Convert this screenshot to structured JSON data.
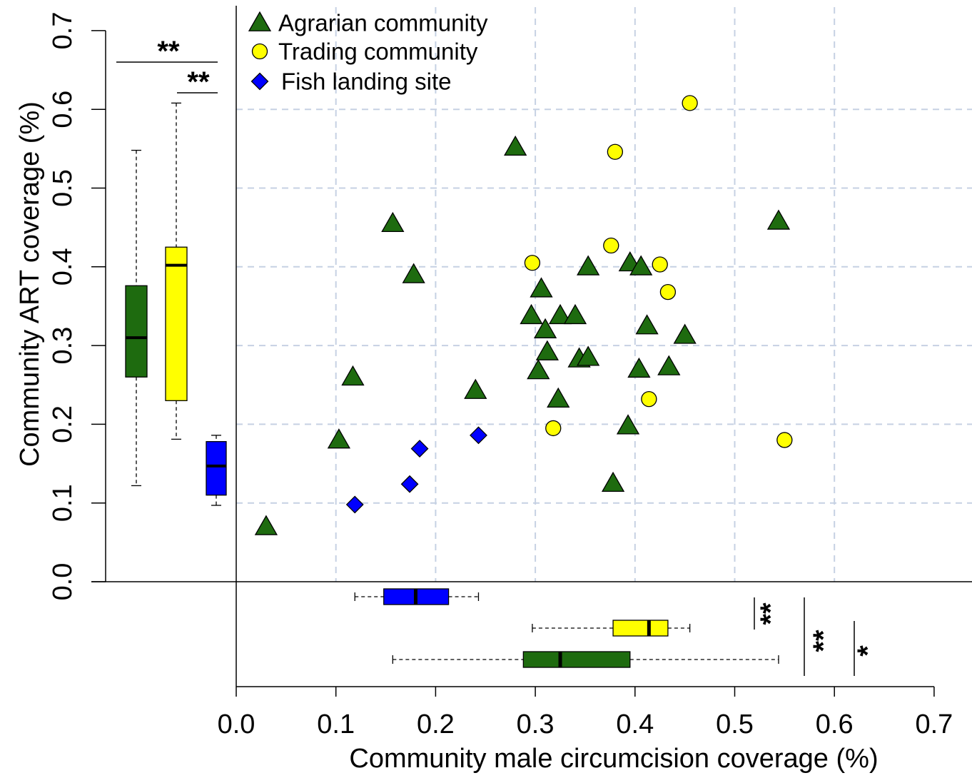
{
  "chart_data": {
    "type": "scatter",
    "xlabel": "Community male circumcision coverage (%)",
    "ylabel": "Community ART coverage (%)",
    "xlim": [
      0,
      0.7
    ],
    "ylim": [
      0,
      0.7
    ],
    "x_ticks": [
      "0.0",
      "0.1",
      "0.2",
      "0.3",
      "0.4",
      "0.5",
      "0.6",
      "0.7"
    ],
    "y_ticks": [
      "0.0",
      "0.1",
      "0.2",
      "0.3",
      "0.4",
      "0.5",
      "0.6",
      "0.7"
    ],
    "grid": true,
    "legend_position": "top-left",
    "series": [
      {
        "name": "Agrarian community",
        "marker": "triangle",
        "color": "#1e6b0f",
        "points": [
          [
            0.03,
            0.07
          ],
          [
            0.103,
            0.18
          ],
          [
            0.117,
            0.26
          ],
          [
            0.157,
            0.455
          ],
          [
            0.178,
            0.39
          ],
          [
            0.24,
            0.243
          ],
          [
            0.28,
            0.552
          ],
          [
            0.296,
            0.338
          ],
          [
            0.303,
            0.268
          ],
          [
            0.306,
            0.372
          ],
          [
            0.31,
            0.32
          ],
          [
            0.312,
            0.292
          ],
          [
            0.323,
            0.232
          ],
          [
            0.325,
            0.338
          ],
          [
            0.34,
            0.338
          ],
          [
            0.344,
            0.283
          ],
          [
            0.353,
            0.4
          ],
          [
            0.353,
            0.285
          ],
          [
            0.378,
            0.125
          ],
          [
            0.393,
            0.198
          ],
          [
            0.395,
            0.405
          ],
          [
            0.404,
            0.27
          ],
          [
            0.406,
            0.4
          ],
          [
            0.412,
            0.325
          ],
          [
            0.434,
            0.273
          ],
          [
            0.45,
            0.313
          ],
          [
            0.544,
            0.458
          ]
        ]
      },
      {
        "name": "Trading community",
        "marker": "circle",
        "color": "#ffff00",
        "points": [
          [
            0.297,
            0.405
          ],
          [
            0.318,
            0.195
          ],
          [
            0.376,
            0.427
          ],
          [
            0.38,
            0.546
          ],
          [
            0.414,
            0.232
          ],
          [
            0.425,
            0.403
          ],
          [
            0.433,
            0.368
          ],
          [
            0.455,
            0.608
          ],
          [
            0.55,
            0.18
          ]
        ]
      },
      {
        "name": "Fish landing site",
        "marker": "diamond",
        "color": "#0000ff",
        "points": [
          [
            0.119,
            0.098
          ],
          [
            0.174,
            0.124
          ],
          [
            0.184,
            0.169
          ],
          [
            0.243,
            0.186
          ]
        ]
      }
    ],
    "boxplots_y": [
      {
        "name": "Agrarian community",
        "color": "#1e6b0f",
        "min": 0.122,
        "q1": 0.26,
        "median": 0.31,
        "q3": 0.376,
        "max": 0.548
      },
      {
        "name": "Trading community",
        "color": "#ffff00",
        "min": 0.181,
        "q1": 0.23,
        "median": 0.402,
        "q3": 0.425,
        "max": 0.608
      },
      {
        "name": "Fish landing site",
        "color": "#0000ff",
        "min": 0.097,
        "q1": 0.11,
        "median": 0.147,
        "q3": 0.178,
        "max": 0.186
      }
    ],
    "boxplots_x": [
      {
        "name": "Fish landing site",
        "color": "#0000ff",
        "min": 0.119,
        "q1": 0.148,
        "median": 0.18,
        "q3": 0.213,
        "max": 0.243
      },
      {
        "name": "Trading community",
        "color": "#ffff00",
        "min": 0.297,
        "q1": 0.378,
        "median": 0.414,
        "q3": 0.433,
        "max": 0.455
      },
      {
        "name": "Agrarian community",
        "color": "#1e6b0f",
        "min": 0.157,
        "q1": 0.288,
        "median": 0.325,
        "q3": 0.395,
        "max": 0.544
      }
    ],
    "annotations_y": [
      {
        "text": "**",
        "between": [
          "Agrarian community",
          "Fish landing site"
        ]
      },
      {
        "text": "**",
        "between": [
          "Trading community",
          "Fish landing site"
        ]
      }
    ],
    "annotations_x": [
      {
        "text": "**",
        "between": [
          "Fish landing site",
          "Trading community"
        ]
      },
      {
        "text": "**",
        "between": [
          "Fish landing site",
          "Agrarian community"
        ]
      },
      {
        "text": "*",
        "between": [
          "Trading community",
          "Agrarian community"
        ]
      }
    ]
  }
}
